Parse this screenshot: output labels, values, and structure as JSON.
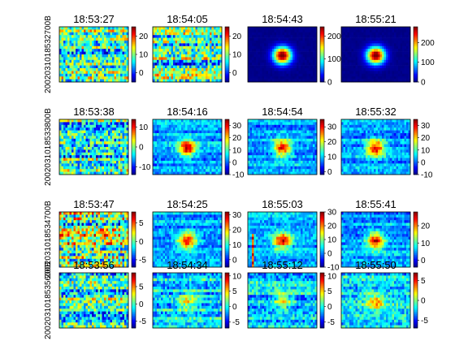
{
  "chart_data": {
    "type": "heatmap",
    "layout": "4x4 grid of heatmap panels, each with its own vertical colorbar (jet colormap)",
    "colormap": "jet",
    "row_labels": [
      "2002031018532700B",
      "2002031018533800B",
      "2002031018534700B",
      "2002031018535600B"
    ],
    "panels": [
      {
        "row": 0,
        "col": 0,
        "title": "18:53:27",
        "pattern": "noise",
        "clim": [
          -5,
          25
        ],
        "colorbar_ticks": [
          0,
          10,
          20
        ]
      },
      {
        "row": 0,
        "col": 1,
        "title": "18:54:05",
        "pattern": "noise",
        "clim": [
          -5,
          25
        ],
        "colorbar_ticks": [
          0,
          10,
          20
        ]
      },
      {
        "row": 0,
        "col": 2,
        "title": "18:54:43",
        "pattern": "blob",
        "clim": [
          0,
          240
        ],
        "colorbar_ticks": [
          0,
          100,
          200
        ]
      },
      {
        "row": 0,
        "col": 3,
        "title": "18:55:21",
        "pattern": "blob",
        "clim": [
          0,
          280
        ],
        "colorbar_ticks": [
          0,
          100,
          200
        ]
      },
      {
        "row": 1,
        "col": 0,
        "title": "18:53:38",
        "pattern": "noise",
        "clim": [
          -14,
          14
        ],
        "colorbar_ticks": [
          -10,
          0,
          10
        ]
      },
      {
        "row": 1,
        "col": 1,
        "title": "18:54:16",
        "pattern": "blob-noise",
        "clim": [
          -10,
          35
        ],
        "colorbar_ticks": [
          -10,
          0,
          10,
          20,
          30
        ]
      },
      {
        "row": 1,
        "col": 2,
        "title": "18:54:54",
        "pattern": "blob-noise",
        "clim": [
          -2,
          35
        ],
        "colorbar_ticks": [
          0,
          10,
          20,
          30
        ]
      },
      {
        "row": 1,
        "col": 3,
        "title": "18:55:32",
        "pattern": "blob-noise",
        "clim": [
          -10,
          35
        ],
        "colorbar_ticks": [
          -10,
          0,
          10,
          20,
          30
        ]
      },
      {
        "row": 2,
        "col": 0,
        "title": "18:53:47",
        "pattern": "noise-hot",
        "clim": [
          -7,
          8
        ],
        "colorbar_ticks": [
          -5,
          0,
          5
        ]
      },
      {
        "row": 2,
        "col": 1,
        "title": "18:54:25",
        "pattern": "blob-noise",
        "clim": [
          -5,
          32
        ],
        "colorbar_ticks": [
          0,
          10,
          20,
          30
        ]
      },
      {
        "row": 2,
        "col": 2,
        "title": "18:55:03",
        "pattern": "blob-noise",
        "clim": [
          -10,
          30
        ],
        "colorbar_ticks": [
          -10,
          0,
          10,
          20,
          30
        ]
      },
      {
        "row": 2,
        "col": 3,
        "title": "18:55:41",
        "pattern": "blob-noise",
        "clim": [
          -4,
          28
        ],
        "colorbar_ticks": [
          0,
          10,
          20
        ]
      },
      {
        "row": 3,
        "col": 0,
        "title": "18:53:56",
        "pattern": "noise",
        "clim": [
          -7,
          9
        ],
        "colorbar_ticks": [
          -5,
          0,
          5
        ]
      },
      {
        "row": 3,
        "col": 1,
        "title": "18:54:34",
        "pattern": "weak-blob",
        "clim": [
          -7,
          11
        ],
        "colorbar_ticks": [
          -5,
          0,
          5,
          10
        ]
      },
      {
        "row": 3,
        "col": 2,
        "title": "18:55:12",
        "pattern": "weak-blob",
        "clim": [
          -7,
          11
        ],
        "colorbar_ticks": [
          -5,
          0,
          5,
          10
        ]
      },
      {
        "row": 3,
        "col": 3,
        "title": "18:55:50",
        "pattern": "weak-blob",
        "clim": [
          -7,
          7
        ],
        "colorbar_ticks": [
          -5,
          0,
          5
        ]
      }
    ]
  }
}
